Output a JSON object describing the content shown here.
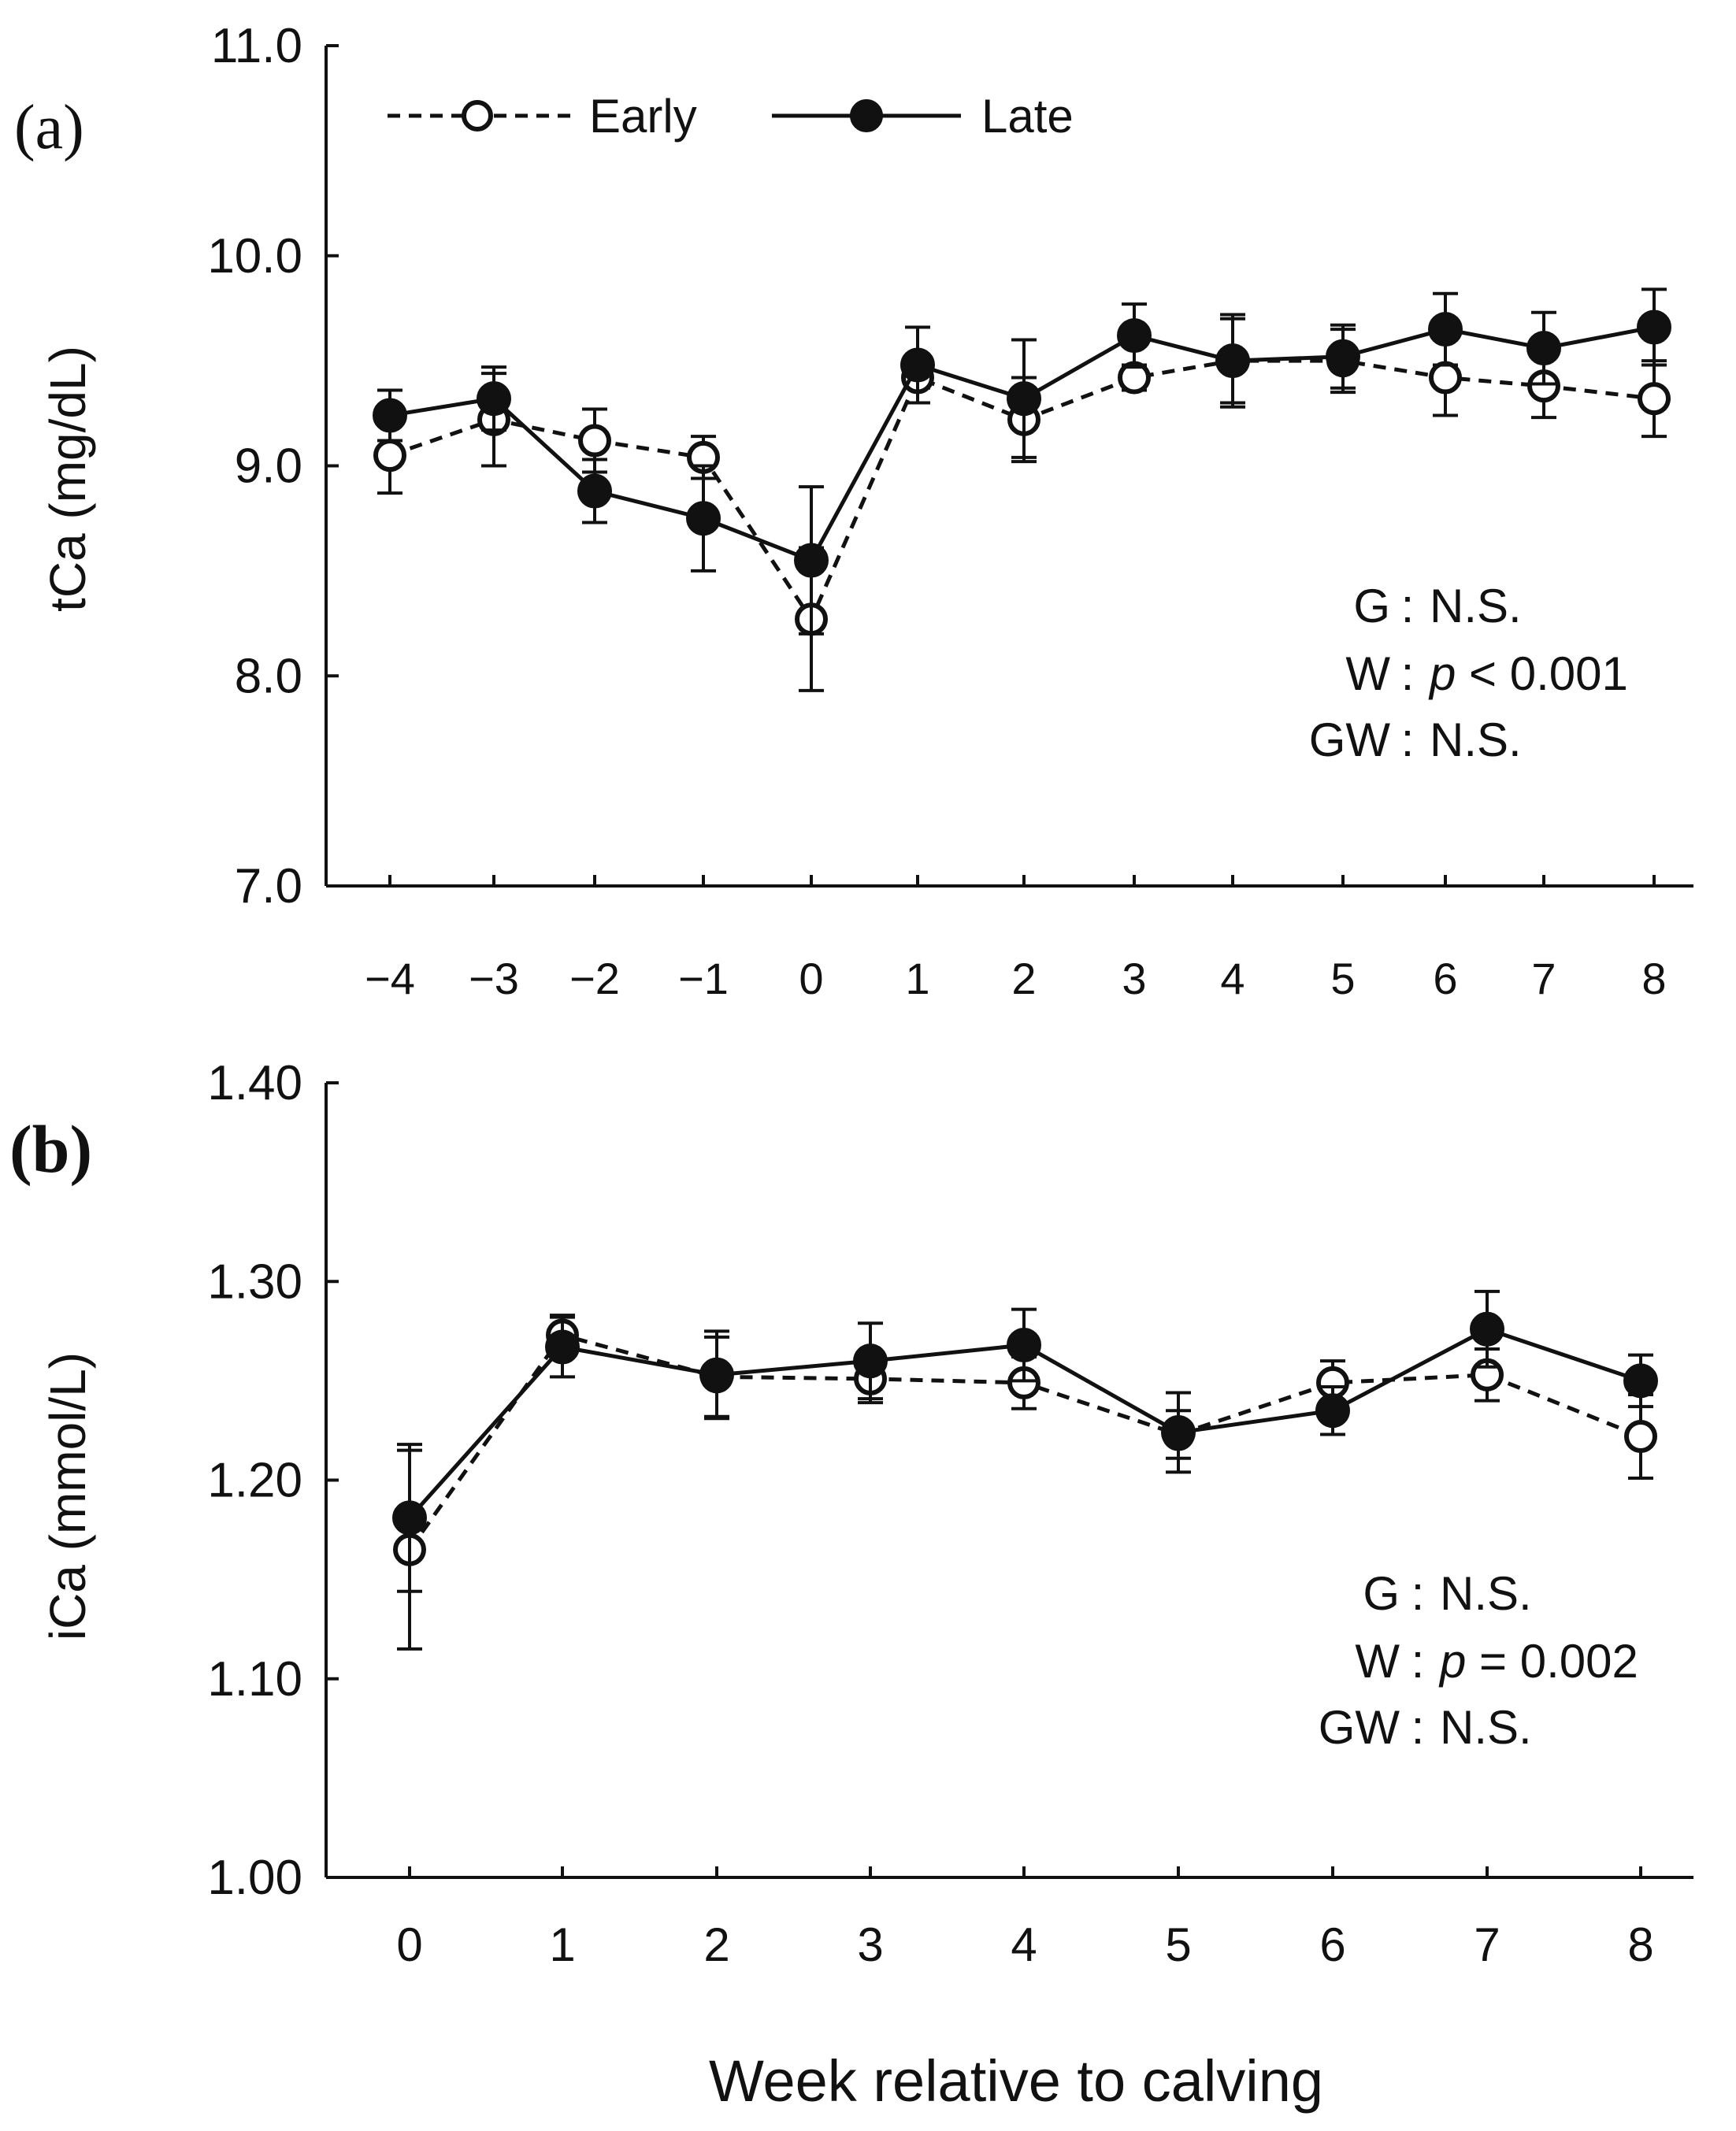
{
  "xlabel": "Week relative to calving",
  "colors": {
    "axis": "#111111",
    "early_fill": "#ffffff",
    "late_fill": "#111111"
  },
  "chart_data": [
    {
      "type": "line",
      "panel_label": "(a)",
      "ylabel": "tCa (mg/dL)",
      "ylim": [
        7.0,
        11.0
      ],
      "yticks": [
        "7.0",
        "8.0",
        "9.0",
        "10.0",
        "11.0"
      ],
      "x_tick_labels": [
        "−4",
        "−3",
        "−2",
        "−1",
        "0",
        "1",
        "2",
        "3",
        "4",
        "5",
        "6",
        "7",
        "8"
      ],
      "x": [
        -4,
        -3,
        -2,
        -1,
        0,
        1,
        2,
        3,
        4,
        5,
        6,
        7,
        8
      ],
      "legend": {
        "early": "Early",
        "late": "Late"
      },
      "series": [
        {
          "name": "Early",
          "style": "dashed-open",
          "values": [
            9.05,
            9.22,
            9.12,
            9.04,
            8.27,
            9.42,
            9.22,
            9.42,
            9.5,
            9.5,
            9.42,
            9.38,
            9.32
          ],
          "errors": [
            0.18,
            0.22,
            0.15,
            0.1,
            0.34,
            0.05,
            0.2,
            0.06,
            0.22,
            0.15,
            0.18,
            0.15,
            0.18
          ]
        },
        {
          "name": "Late",
          "style": "solid-filled",
          "values": [
            9.24,
            9.32,
            8.88,
            8.75,
            8.55,
            9.48,
            9.32,
            9.62,
            9.5,
            9.52,
            9.65,
            9.56,
            9.66
          ],
          "errors": [
            0.12,
            0.15,
            0.15,
            0.25,
            0.35,
            0.18,
            0.28,
            0.15,
            0.2,
            0.15,
            0.17,
            0.17,
            0.18
          ]
        }
      ],
      "stats": [
        {
          "label": "G",
          "colon": ":",
          "p": "",
          "value": "N.S."
        },
        {
          "label": "W",
          "colon": ":",
          "p": "p",
          "value": " < 0.001"
        },
        {
          "label": "GW",
          "colon": ":",
          "p": "",
          "value": "N.S."
        }
      ]
    },
    {
      "type": "line",
      "panel_label": "(b)",
      "ylabel": "iCa (mmol/L)",
      "ylim": [
        1.0,
        1.4
      ],
      "yticks": [
        "1.00",
        "1.10",
        "1.20",
        "1.30",
        "1.40"
      ],
      "x_tick_labels": [
        "0",
        "1",
        "2",
        "3",
        "4",
        "5",
        "6",
        "7",
        "8"
      ],
      "x": [
        0,
        1,
        2,
        3,
        4,
        5,
        6,
        7,
        8
      ],
      "series": [
        {
          "name": "Early",
          "style": "dashed-open",
          "values": [
            1.165,
            1.273,
            1.252,
            1.251,
            1.249,
            1.223,
            1.249,
            1.253,
            1.222
          ],
          "errors": [
            0.05,
            0.01,
            0.02,
            0.012,
            0.013,
            0.012,
            0.011,
            0.013,
            0.021
          ]
        },
        {
          "name": "Late",
          "style": "solid-filled",
          "values": [
            1.181,
            1.267,
            1.253,
            1.26,
            1.268,
            1.224,
            1.235,
            1.276,
            1.25
          ],
          "errors": [
            0.037,
            0.015,
            0.022,
            0.019,
            0.018,
            0.02,
            0.012,
            0.019,
            0.013
          ]
        }
      ],
      "stats": [
        {
          "label": "G",
          "colon": ":",
          "p": "",
          "value": "N.S."
        },
        {
          "label": "W",
          "colon": ":",
          "p": "p",
          "value": " = 0.002"
        },
        {
          "label": "GW",
          "colon": ":",
          "p": "",
          "value": "N.S."
        }
      ]
    }
  ]
}
